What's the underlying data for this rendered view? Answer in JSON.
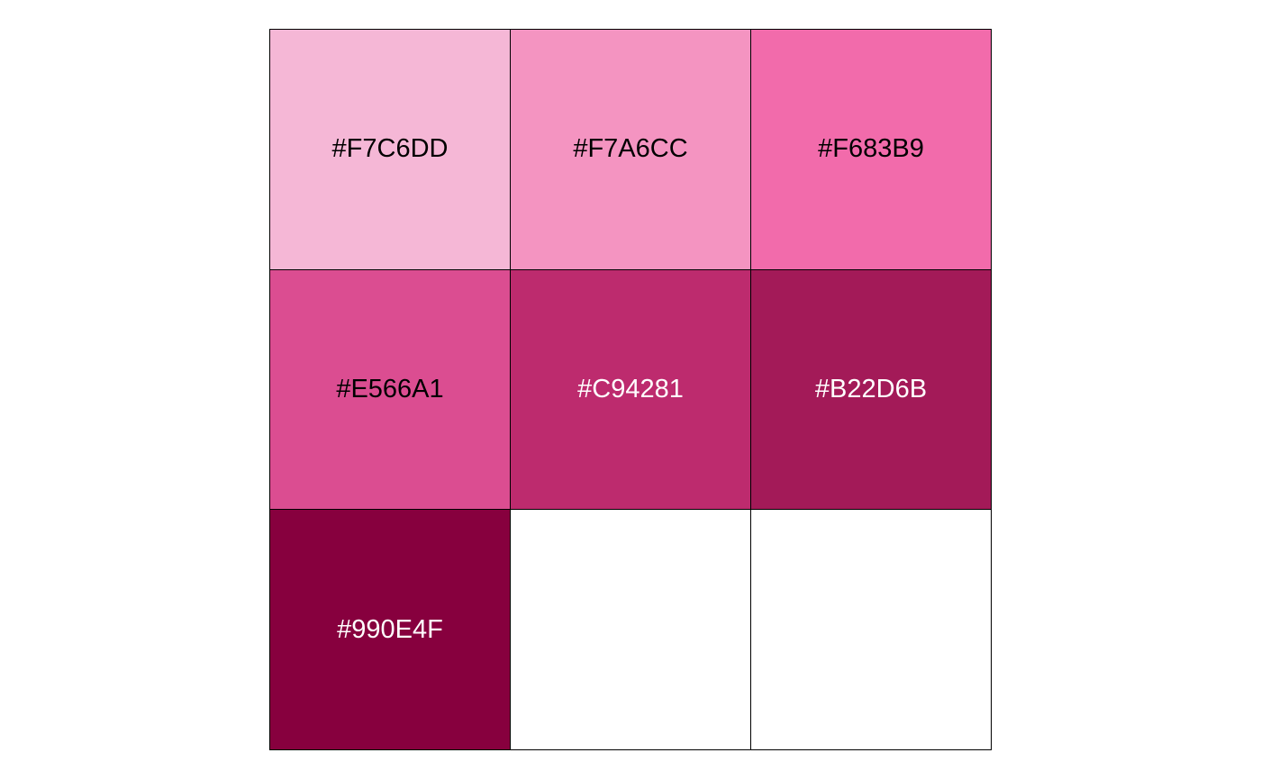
{
  "swatches": [
    {
      "label": "#F7C6DD",
      "color": "#F5B7D6",
      "text_color": "#000000"
    },
    {
      "label": "#F7A6CC",
      "color": "#F494C1",
      "text_color": "#000000"
    },
    {
      "label": "#F683B9",
      "color": "#F26BAB",
      "text_color": "#000000"
    },
    {
      "label": "#E566A1",
      "color": "#DB4D91",
      "text_color": "#000000"
    },
    {
      "label": "#C94281",
      "color": "#BD2B6E",
      "text_color": "#FFFFFF"
    },
    {
      "label": "#B22D6B",
      "color": "#A31A58",
      "text_color": "#FFFFFF"
    },
    {
      "label": "#990E4F",
      "color": "#87003E",
      "text_color": "#FFFFFF"
    },
    {
      "label": "",
      "color": "#FFFFFF",
      "text_color": "#000000"
    },
    {
      "label": "",
      "color": "#FFFFFF",
      "text_color": "#000000"
    }
  ]
}
